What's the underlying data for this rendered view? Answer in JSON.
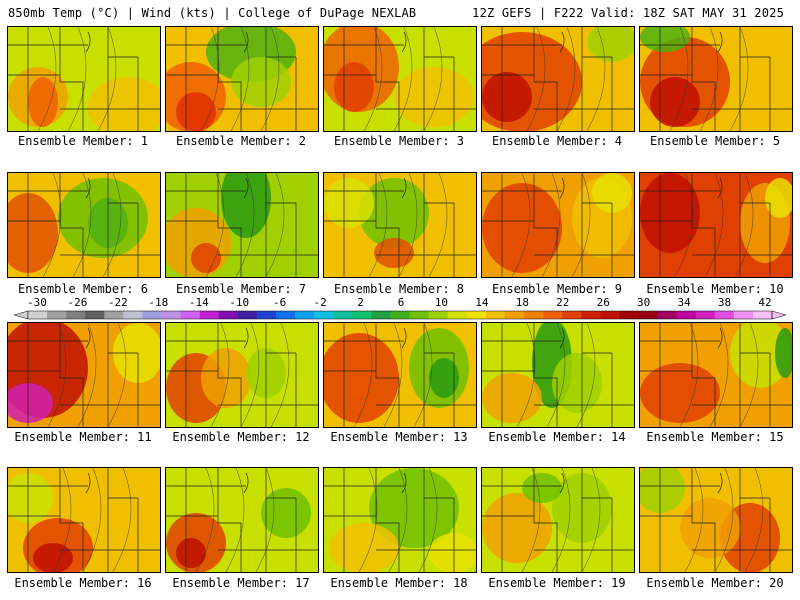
{
  "header": {
    "left": "850mb Temp (°C) | Wind (kts) | College of DuPage NEXLAB",
    "right": "12Z GEFS | F222 Valid: 18Z SAT MAY 31 2025"
  },
  "panels": [
    {
      "label": "Ensemble Member: 1",
      "fill": "#c8e000",
      "blobs": [
        [
          "#f0a000",
          30,
          70,
          30,
          30
        ],
        [
          "#f06000",
          35,
          75,
          15,
          25
        ],
        [
          "#f0c000",
          120,
          80,
          40,
          30
        ]
      ]
    },
    {
      "label": "Ensemble Member: 2",
      "fill": "#f0c000",
      "blobs": [
        [
          "#50b010",
          85,
          25,
          45,
          30
        ],
        [
          "#a0d000",
          95,
          55,
          30,
          25
        ],
        [
          "#f06000",
          25,
          70,
          35,
          35
        ],
        [
          "#e03000",
          30,
          85,
          20,
          20
        ]
      ]
    },
    {
      "label": "Ensemble Member: 3",
      "fill": "#c8e000",
      "blobs": [
        [
          "#f06000",
          35,
          40,
          40,
          45
        ],
        [
          "#e04000",
          30,
          60,
          20,
          25
        ],
        [
          "#f0c000",
          110,
          70,
          40,
          30
        ]
      ]
    },
    {
      "label": "Ensemble Member: 4",
      "fill": "#f0c000",
      "blobs": [
        [
          "#e04000",
          40,
          55,
          60,
          50
        ],
        [
          "#c01000",
          25,
          70,
          25,
          25
        ],
        [
          "#a0d000",
          130,
          15,
          25,
          20
        ]
      ]
    },
    {
      "label": "Ensemble Member: 5",
      "fill": "#f0c000",
      "blobs": [
        [
          "#e04000",
          45,
          55,
          45,
          45
        ],
        [
          "#c01000",
          35,
          75,
          25,
          25
        ],
        [
          "#50b010",
          25,
          10,
          25,
          15
        ]
      ]
    },
    {
      "label": "Ensemble Member: 6",
      "fill": "#f0c000",
      "blobs": [
        [
          "#e05000",
          20,
          60,
          30,
          40
        ],
        [
          "#70c000",
          95,
          45,
          45,
          40
        ],
        [
          "#50b010",
          100,
          50,
          20,
          25
        ]
      ]
    },
    {
      "label": "Ensemble Member: 7",
      "fill": "#a0d000",
      "blobs": [
        [
          "#2a9a10",
          80,
          25,
          25,
          40
        ],
        [
          "#f0a000",
          30,
          70,
          35,
          35
        ],
        [
          "#e04000",
          40,
          85,
          15,
          15
        ]
      ]
    },
    {
      "label": "Ensemble Member: 8",
      "fill": "#f0c000",
      "blobs": [
        [
          "#70c000",
          70,
          40,
          35,
          35
        ],
        [
          "#e05000",
          70,
          80,
          20,
          15
        ],
        [
          "#d8e000",
          25,
          30,
          25,
          25
        ]
      ]
    },
    {
      "label": "Ensemble Member: 9",
      "fill": "#f0a000",
      "blobs": [
        [
          "#e04000",
          40,
          55,
          40,
          45
        ],
        [
          "#f0c000",
          120,
          45,
          30,
          40
        ],
        [
          "#e8e000",
          130,
          20,
          20,
          20
        ]
      ]
    },
    {
      "label": "Ensemble Member: 10",
      "fill": "#e04000",
      "blobs": [
        [
          "#c01000",
          30,
          40,
          30,
          40
        ],
        [
          "#f0a000",
          125,
          50,
          25,
          40
        ],
        [
          "#e8e000",
          140,
          25,
          15,
          20
        ]
      ]
    },
    {
      "label": "Ensemble Member: 11",
      "fill": "#f0a000",
      "blobs": [
        [
          "#c01000",
          35,
          45,
          45,
          50
        ],
        [
          "#d020b0",
          20,
          80,
          25,
          20
        ],
        [
          "#e8e000",
          130,
          30,
          25,
          30
        ]
      ]
    },
    {
      "label": "Ensemble Member: 12",
      "fill": "#c8e000",
      "blobs": [
        [
          "#e04000",
          30,
          65,
          30,
          35
        ],
        [
          "#f0a000",
          60,
          55,
          25,
          30
        ],
        [
          "#a0d000",
          100,
          50,
          20,
          25
        ]
      ]
    },
    {
      "label": "Ensemble Member: 13",
      "fill": "#f0c000",
      "blobs": [
        [
          "#e04000",
          35,
          55,
          40,
          45
        ],
        [
          "#70c000",
          115,
          45,
          30,
          40
        ],
        [
          "#2a9a10",
          120,
          55,
          15,
          20
        ]
      ]
    },
    {
      "label": "Ensemble Member: 14",
      "fill": "#c8e000",
      "blobs": [
        [
          "#2a9a10",
          70,
          40,
          20,
          45
        ],
        [
          "#a0d000",
          95,
          60,
          25,
          30
        ],
        [
          "#f0a000",
          30,
          75,
          30,
          25
        ]
      ]
    },
    {
      "label": "Ensemble Member: 15",
      "fill": "#f0a000",
      "blobs": [
        [
          "#e04000",
          40,
          70,
          40,
          30
        ],
        [
          "#c8e000",
          120,
          30,
          30,
          35
        ],
        [
          "#2a9a10",
          145,
          30,
          10,
          25
        ]
      ]
    },
    {
      "label": "Ensemble Member: 16",
      "fill": "#f0c000",
      "blobs": [
        [
          "#e04000",
          50,
          80,
          35,
          30
        ],
        [
          "#c01000",
          45,
          90,
          20,
          15
        ],
        [
          "#c8e000",
          20,
          30,
          25,
          25
        ]
      ]
    },
    {
      "label": "Ensemble Member: 17",
      "fill": "#c8e000",
      "blobs": [
        [
          "#e04000",
          30,
          75,
          30,
          30
        ],
        [
          "#c01000",
          25,
          85,
          15,
          15
        ],
        [
          "#70c000",
          120,
          45,
          25,
          25
        ]
      ]
    },
    {
      "label": "Ensemble Member: 18",
      "fill": "#c8e000",
      "blobs": [
        [
          "#70c000",
          90,
          40,
          45,
          40
        ],
        [
          "#f0c000",
          40,
          80,
          35,
          25
        ],
        [
          "#e8e000",
          130,
          85,
          25,
          20
        ]
      ]
    },
    {
      "label": "Ensemble Member: 19",
      "fill": "#c8e000",
      "blobs": [
        [
          "#f0a000",
          35,
          60,
          35,
          35
        ],
        [
          "#a0d000",
          100,
          40,
          30,
          35
        ],
        [
          "#70c000",
          60,
          20,
          20,
          15
        ]
      ]
    },
    {
      "label": "Ensemble Member: 20",
      "fill": "#f0c000",
      "blobs": [
        [
          "#e04000",
          110,
          70,
          30,
          35
        ],
        [
          "#a0d000",
          20,
          20,
          25,
          25
        ],
        [
          "#f0a000",
          70,
          60,
          30,
          30
        ]
      ]
    }
  ],
  "colorbar": {
    "ticks": [
      "-30",
      "-26",
      "-22",
      "-18",
      "-14",
      "-10",
      "-6",
      "-2",
      "2",
      "6",
      "10",
      "14",
      "18",
      "22",
      "26",
      "30",
      "34",
      "38",
      "42"
    ],
    "colors": [
      "#d0d0d0",
      "#a0a0a0",
      "#808080",
      "#606060",
      "#a0a0a0",
      "#c0c0d0",
      "#a0a0e0",
      "#c090e0",
      "#d060f0",
      "#c020d0",
      "#8010b0",
      "#4020a0",
      "#2040d0",
      "#1070f0",
      "#10a0f0",
      "#10c0e0",
      "#10c0a0",
      "#10c070",
      "#20a040",
      "#40b020",
      "#70c000",
      "#a0d000",
      "#d0e000",
      "#f0e000",
      "#f0c000",
      "#f0a000",
      "#f08000",
      "#f06000",
      "#e04000",
      "#d02000",
      "#c01000",
      "#a00000",
      "#900010",
      "#a00060",
      "#c000a0",
      "#d020c0",
      "#e050e0",
      "#f090f0",
      "#f8c0f8"
    ]
  }
}
